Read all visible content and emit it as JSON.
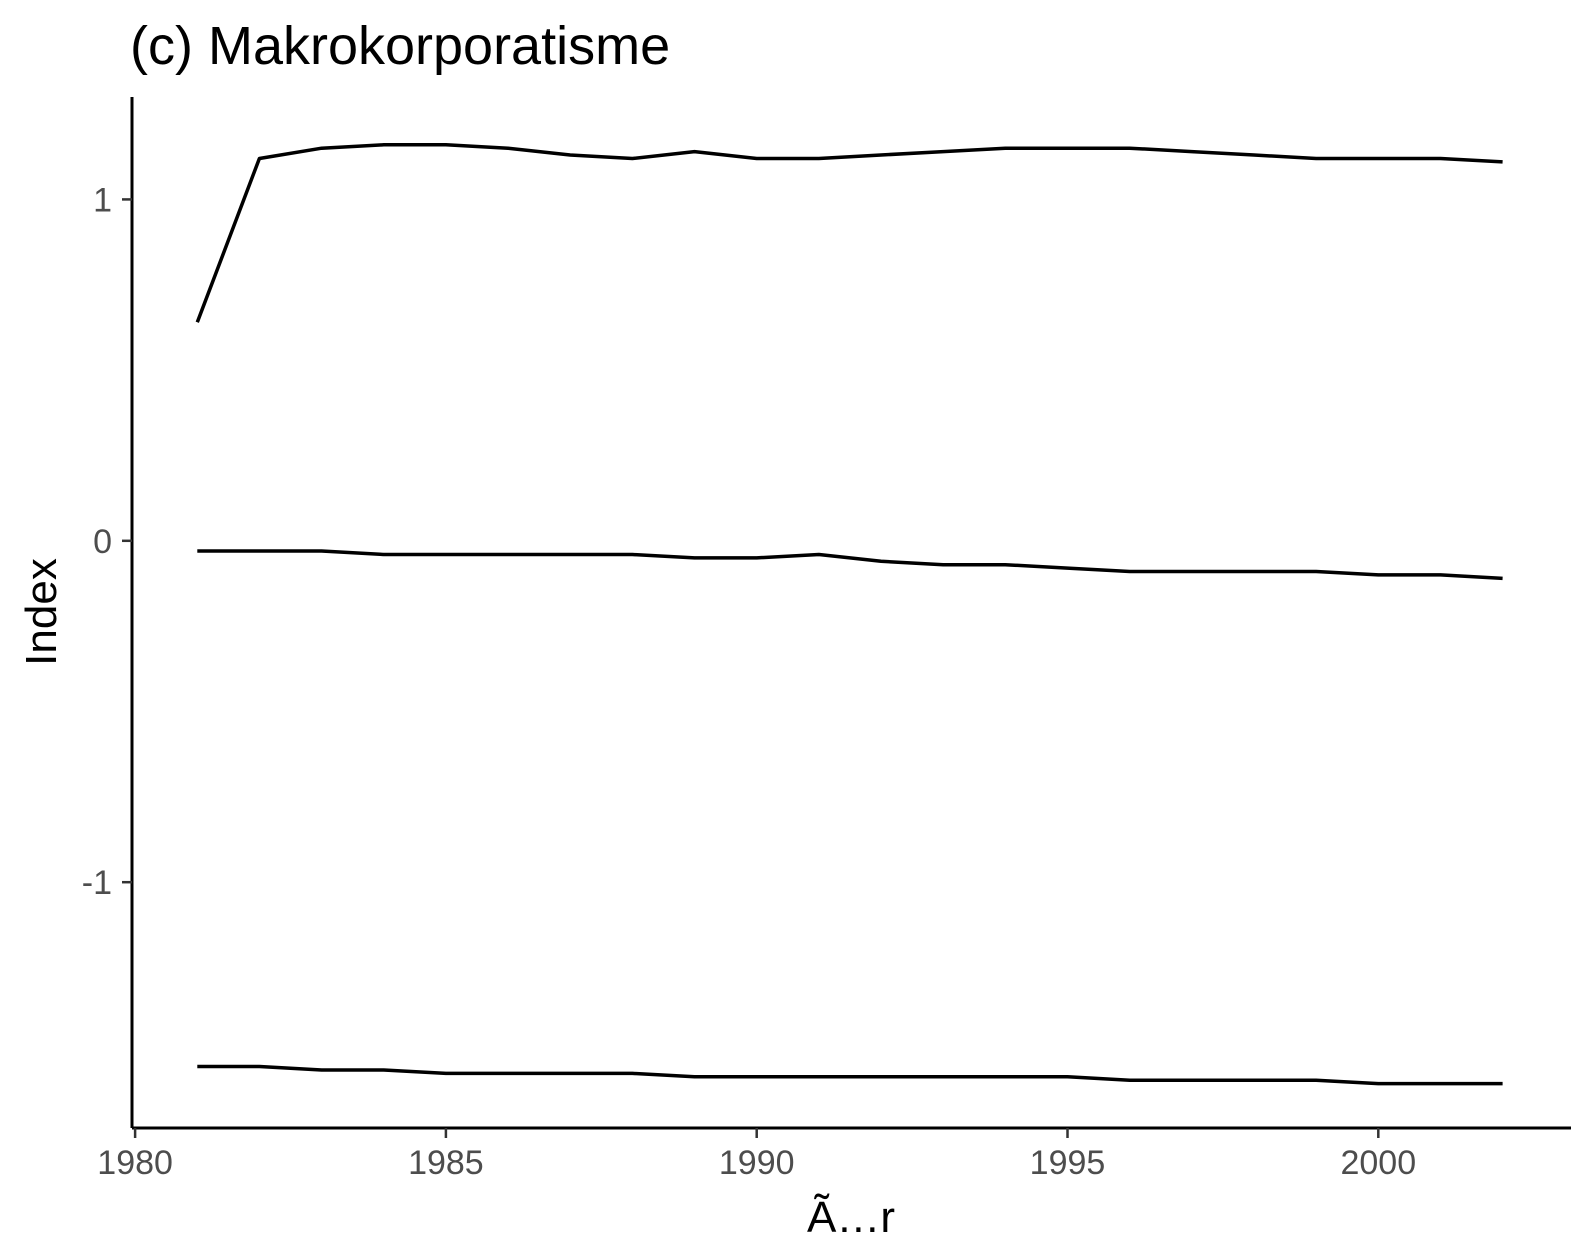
{
  "chart_data": {
    "type": "line",
    "title": "(c) Makrokorporatisme",
    "xlabel": "Ã…r",
    "ylabel": "Index",
    "xlim": [
      1979.95,
      2003.1
    ],
    "ylim": [
      -1.72,
      1.3
    ],
    "x_ticks": [
      1980,
      1985,
      1990,
      1995,
      2000
    ],
    "x_tick_labels": [
      "1980",
      "1985",
      "1990",
      "1995",
      "2000"
    ],
    "y_ticks": [
      -1,
      0,
      1
    ],
    "y_tick_labels": [
      "-1",
      "0",
      "1"
    ],
    "grid": false,
    "legend": "none",
    "line_color": "#000000",
    "x": [
      1981,
      1982,
      1983,
      1984,
      1985,
      1986,
      1987,
      1988,
      1989,
      1990,
      1991,
      1992,
      1993,
      1994,
      1995,
      1996,
      1997,
      1998,
      1999,
      2000,
      2001,
      2002
    ],
    "series": [
      {
        "values": [
          0.64,
          1.12,
          1.15,
          1.16,
          1.16,
          1.15,
          1.13,
          1.12,
          1.14,
          1.12,
          1.12,
          1.13,
          1.14,
          1.15,
          1.15,
          1.15,
          1.14,
          1.13,
          1.12,
          1.12,
          1.12,
          1.11
        ]
      },
      {
        "values": [
          -0.03,
          -0.03,
          -0.03,
          -0.04,
          -0.04,
          -0.04,
          -0.04,
          -0.04,
          -0.05,
          -0.05,
          -0.04,
          -0.06,
          -0.07,
          -0.07,
          -0.08,
          -0.09,
          -0.09,
          -0.09,
          -0.09,
          -0.1,
          -0.1,
          -0.11
        ]
      },
      {
        "values": [
          -1.54,
          -1.54,
          -1.55,
          -1.55,
          -1.56,
          -1.56,
          -1.56,
          -1.56,
          -1.57,
          -1.57,
          -1.57,
          -1.57,
          -1.57,
          -1.57,
          -1.57,
          -1.58,
          -1.58,
          -1.58,
          -1.58,
          -1.59,
          -1.59,
          -1.59
        ]
      }
    ]
  }
}
